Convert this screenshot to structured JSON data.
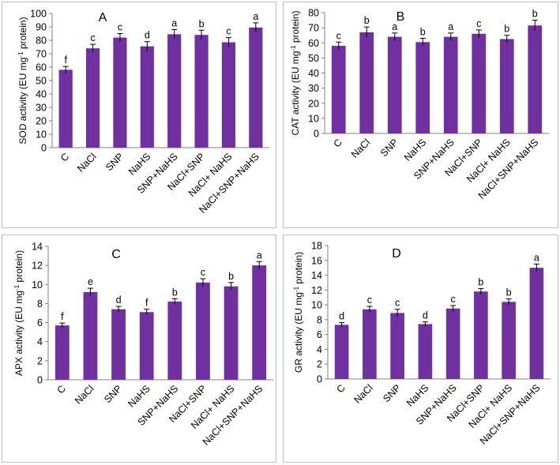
{
  "chart_data": [
    {
      "type": "bar",
      "panel_label": "A",
      "ylabel_main": "SOD activity (EU mg",
      "ylabel_sup": "-1",
      "ylabel_tail": " protein)",
      "ylim": [
        0,
        100
      ],
      "yticks": [
        "0",
        "10",
        "20",
        "30",
        "40",
        "50",
        "60",
        "70",
        "80",
        "90",
        "100"
      ],
      "categories": [
        "C",
        "NaCl",
        "SNP",
        "NaHS",
        "SNP+NaHS",
        "NaCl+SNP",
        "NaCl+ NaHS",
        "NaCl+SNP+NaHS"
      ],
      "values": [
        58,
        74,
        82,
        75.5,
        84.5,
        84,
        78.5,
        89.5
      ],
      "errors": [
        2.5,
        3,
        3,
        3.5,
        3.5,
        3.5,
        3.5,
        3.5
      ],
      "letters": [
        "f",
        "c",
        "c",
        "d",
        "a",
        "b",
        "c",
        "a"
      ],
      "bar_color": "#7030a0"
    },
    {
      "type": "bar",
      "panel_label": "B",
      "ylabel_main": "CAT activity (EU mg",
      "ylabel_sup": "-1",
      "ylabel_tail": " protein)",
      "ylim": [
        0,
        80
      ],
      "yticks": [
        "0",
        "10",
        "20",
        "30",
        "40",
        "50",
        "60",
        "70",
        "80"
      ],
      "categories": [
        "C",
        "NaCl",
        "SNP",
        "NaHS",
        "SNP+NaHS",
        "NaCl+SNP",
        "NaCl+ NaHS",
        "NaCl+SNP+NaHS"
      ],
      "values": [
        58,
        67,
        64,
        60.5,
        64,
        66,
        62.5,
        71.5
      ],
      "errors": [
        2.5,
        3.5,
        2.5,
        2.5,
        2.5,
        2.5,
        2.5,
        3.5
      ],
      "letters": [
        "c",
        "b",
        "a",
        "b",
        "a",
        "c",
        "b",
        "b"
      ],
      "bar_color": "#7030a0"
    },
    {
      "type": "bar",
      "panel_label": "C",
      "ylabel_main": "APX activity (EU mg",
      "ylabel_sup": "-1",
      "ylabel_tail": " protein)",
      "ylim": [
        0,
        14
      ],
      "yticks": [
        "0",
        "2",
        "4",
        "6",
        "8",
        "10",
        "12",
        "14"
      ],
      "categories": [
        "C",
        "NaCl",
        "SNP",
        "NaHS",
        "SNP+NaHS",
        "NaCl+SNP",
        "NaCl+ NaHS",
        "NaCl+SNP+NaHS"
      ],
      "values": [
        5.7,
        9.2,
        7.4,
        7.1,
        8.2,
        10.2,
        9.8,
        12.0
      ],
      "errors": [
        0.25,
        0.4,
        0.3,
        0.3,
        0.3,
        0.4,
        0.4,
        0.4
      ],
      "letters": [
        "f",
        "e",
        "d",
        "f",
        "b",
        "c",
        "b",
        "a"
      ],
      "bar_color": "#7030a0"
    },
    {
      "type": "bar",
      "panel_label": "D",
      "ylabel_main": "GR activity (EU mg",
      "ylabel_sup": "-1",
      "ylabel_tail": " protein)",
      "ylim": [
        0,
        18
      ],
      "yticks": [
        "0",
        "2",
        "4",
        "6",
        "8",
        "10",
        "12",
        "14",
        "16",
        "18"
      ],
      "categories": [
        "C",
        "NaCl",
        "SNP",
        "NaHS",
        "SNP+NaHS",
        "NaCl+SNP",
        "NaCl+ NaHS",
        "NaCl+SNP+NaHS"
      ],
      "values": [
        7.3,
        9.4,
        8.9,
        7.4,
        9.5,
        11.8,
        10.4,
        15.0
      ],
      "errors": [
        0.3,
        0.4,
        0.5,
        0.3,
        0.4,
        0.4,
        0.4,
        0.5
      ],
      "letters": [
        "d",
        "c",
        "c",
        "d",
        "c",
        "b",
        "b",
        "a"
      ],
      "bar_color": "#7030a0"
    }
  ]
}
